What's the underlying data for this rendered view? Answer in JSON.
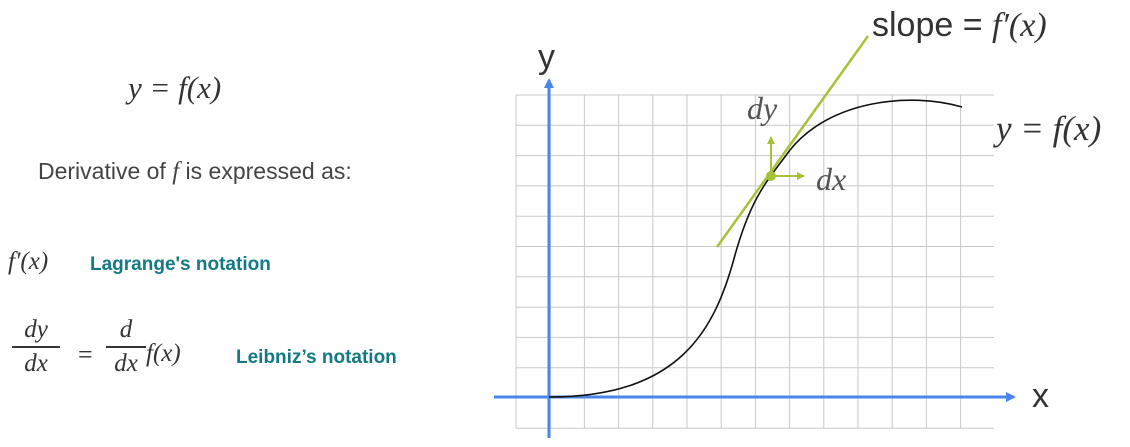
{
  "left_panel": {
    "function_eq": "y = f(x)",
    "derivative_prefix": "Derivative of ",
    "derivative_f": "f",
    "derivative_suffix": " is  expressed as:",
    "lagrange_expr": "f′(x)",
    "lagrange_label": "Lagrange's notation",
    "leibniz_num1": "dy",
    "leibniz_den1": "dx",
    "leibniz_equals": "=",
    "leibniz_num2": "d",
    "leibniz_den2": "dx",
    "leibniz_fx": "f(x)",
    "leibniz_label": "Leibniz’s notation"
  },
  "graph": {
    "y_axis_label": "y",
    "x_axis_label": "x",
    "slope_prefix": "slope = ",
    "slope_expr": "f′(x)",
    "curve_label": "y = f(x)",
    "dy_label": "dy",
    "dx_label": "dx",
    "colors": {
      "axis": "#4a86e8",
      "tangent": "#a6c23a",
      "curve": "#111111",
      "grid": "#c8c8c8"
    }
  }
}
